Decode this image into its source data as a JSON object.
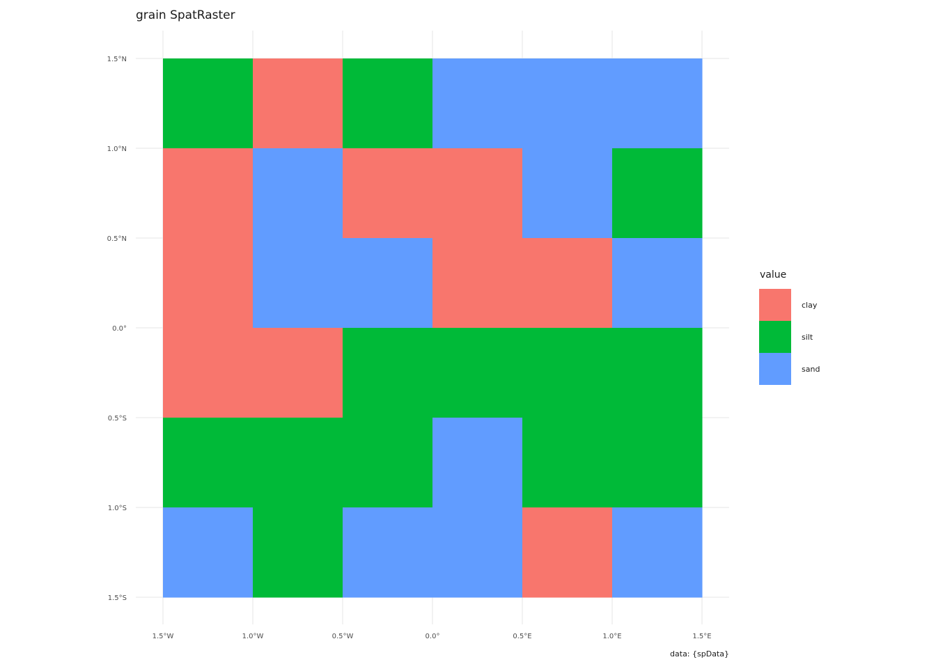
{
  "chart_data": {
    "type": "heatmap",
    "title": "grain SpatRaster",
    "caption": "data: {spData}",
    "x_ticks": [
      {
        "value": -1.5,
        "label": "1.5°W"
      },
      {
        "value": -1.0,
        "label": "1.0°W"
      },
      {
        "value": -0.5,
        "label": "0.5°W"
      },
      {
        "value": 0.0,
        "label": "0.0°"
      },
      {
        "value": 0.5,
        "label": "0.5°E"
      },
      {
        "value": 1.0,
        "label": "1.0°E"
      },
      {
        "value": 1.5,
        "label": "1.5°E"
      }
    ],
    "y_ticks": [
      {
        "value": 1.5,
        "label": "1.5°N"
      },
      {
        "value": 1.0,
        "label": "1.0°N"
      },
      {
        "value": 0.5,
        "label": "0.5°N"
      },
      {
        "value": 0.0,
        "label": "0.0°"
      },
      {
        "value": -0.5,
        "label": "0.5°S"
      },
      {
        "value": -1.0,
        "label": "1.0°S"
      },
      {
        "value": -1.5,
        "label": "1.5°S"
      }
    ],
    "xlim": [
      -1.5,
      1.5
    ],
    "ylim": [
      -1.5,
      1.5
    ],
    "grid": true,
    "cell_size": 0.5,
    "rows_top_to_bottom": [
      [
        "silt",
        "clay",
        "silt",
        "sand",
        "sand",
        "sand"
      ],
      [
        "clay",
        "sand",
        "clay",
        "clay",
        "sand",
        "silt"
      ],
      [
        "clay",
        "sand",
        "sand",
        "clay",
        "clay",
        "sand"
      ],
      [
        "clay",
        "clay",
        "silt",
        "silt",
        "silt",
        "silt"
      ],
      [
        "silt",
        "silt",
        "silt",
        "sand",
        "silt",
        "silt"
      ],
      [
        "sand",
        "silt",
        "sand",
        "sand",
        "clay",
        "sand"
      ]
    ],
    "legend": {
      "title": "value",
      "position": "right",
      "entries": [
        {
          "label": "clay",
          "color": "#F8766D"
        },
        {
          "label": "silt",
          "color": "#00BA38"
        },
        {
          "label": "sand",
          "color": "#619CFF"
        }
      ]
    },
    "grid_color": "#EBEBEB"
  }
}
